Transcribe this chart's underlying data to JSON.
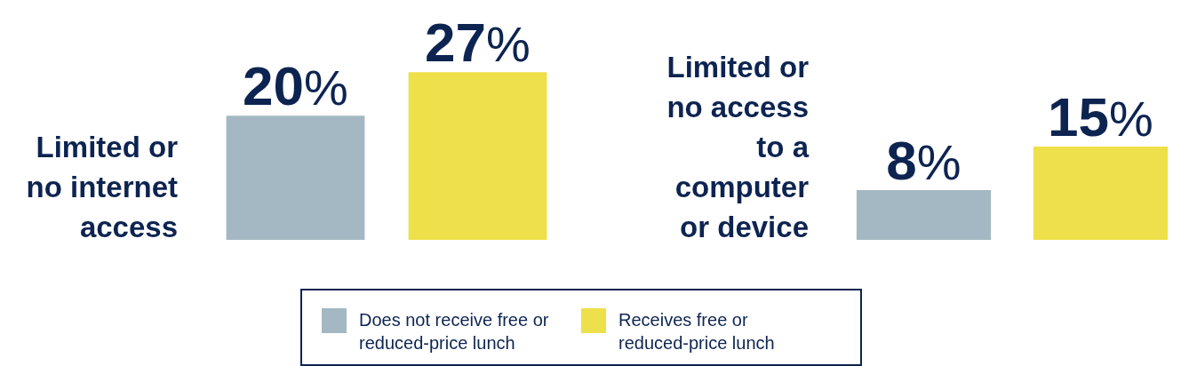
{
  "chart_data": [
    {
      "type": "bar",
      "categories": [
        null
      ],
      "ylabel": "Limited or no internet access",
      "legend": "bottom",
      "series": [
        {
          "name": "Does not receive free or reduced-price lunch",
          "color": "#a3b8c2",
          "values": [
            20
          ],
          "value_labels": [
            "20%"
          ]
        },
        {
          "name": "Receives free or reduced-price lunch",
          "color": "#eee04a",
          "values": [
            27
          ],
          "value_labels": [
            "27%"
          ]
        }
      ]
    },
    {
      "type": "bar",
      "categories": [
        null
      ],
      "ylabel": "Limited or no access to a computer or device",
      "series": [
        {
          "color": "#a3b8c2",
          "values": [
            8
          ],
          "value_labels": [
            "8%"
          ]
        },
        {
          "color": "#eee04a",
          "values": [
            15
          ],
          "value_labels": [
            "15%"
          ]
        }
      ]
    }
  ]
}
